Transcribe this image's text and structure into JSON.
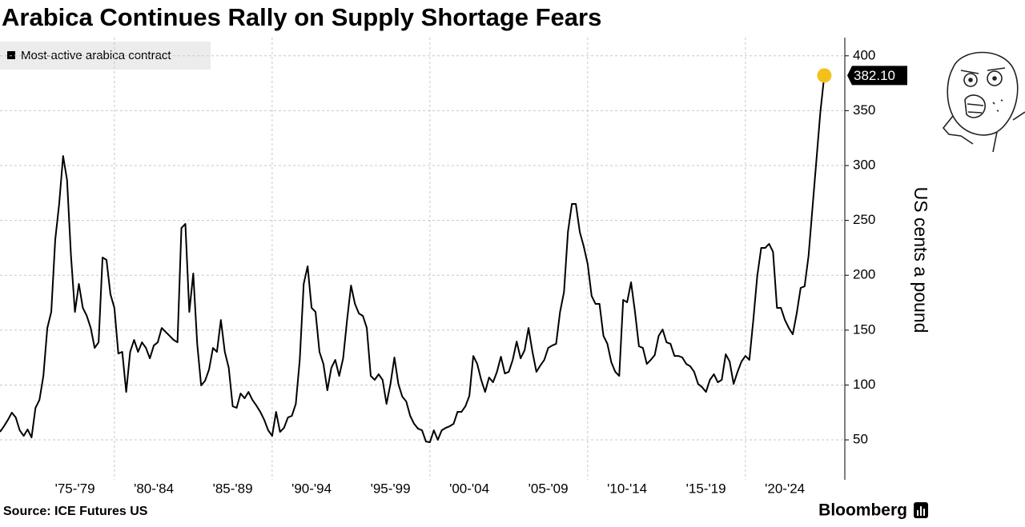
{
  "chart_data": {
    "type": "line",
    "title": "Arabica Continues Rally on Supply Shortage Fears",
    "source": "Source: ICE Futures US",
    "brand": "Bloomberg",
    "y_label": "US cents a pound",
    "end_label": "382.10",
    "highlight_color": "#f2c21b",
    "x": [
      1972.75,
      1973,
      1973.25,
      1973.5,
      1973.75,
      1974,
      1974.25,
      1974.5,
      1974.75,
      1975,
      1975.25,
      1975.5,
      1975.75,
      1976,
      1976.25,
      1976.5,
      1976.75,
      1977,
      1977.25,
      1977.5,
      1977.75,
      1978,
      1978.25,
      1978.5,
      1978.75,
      1979,
      1979.25,
      1979.5,
      1979.75,
      1980,
      1980.25,
      1980.5,
      1980.75,
      1981,
      1981.25,
      1981.5,
      1981.75,
      1982,
      1982.25,
      1982.5,
      1982.75,
      1983,
      1983.25,
      1983.5,
      1983.75,
      1984,
      1984.25,
      1984.5,
      1984.75,
      1985,
      1985.25,
      1985.5,
      1985.75,
      1986,
      1986.25,
      1986.5,
      1986.75,
      1987,
      1987.25,
      1987.5,
      1987.75,
      1988,
      1988.25,
      1988.5,
      1988.75,
      1989,
      1989.25,
      1989.5,
      1989.75,
      1990,
      1990.25,
      1990.5,
      1990.75,
      1991,
      1991.25,
      1991.5,
      1991.75,
      1992,
      1992.25,
      1992.5,
      1992.75,
      1993,
      1993.25,
      1993.5,
      1993.75,
      1994,
      1994.25,
      1994.5,
      1994.75,
      1995,
      1995.25,
      1995.5,
      1995.75,
      1996,
      1996.25,
      1996.5,
      1996.75,
      1997,
      1997.25,
      1997.5,
      1997.75,
      1998,
      1998.25,
      1998.5,
      1998.75,
      1999,
      1999.25,
      1999.5,
      1999.75,
      2000,
      2000.25,
      2000.5,
      2000.75,
      2001,
      2001.25,
      2001.5,
      2001.75,
      2002,
      2002.25,
      2002.5,
      2002.75,
      2003,
      2003.25,
      2003.5,
      2003.75,
      2004,
      2004.25,
      2004.5,
      2004.75,
      2005,
      2005.25,
      2005.5,
      2005.75,
      2006,
      2006.25,
      2006.5,
      2006.75,
      2007,
      2007.25,
      2007.5,
      2007.75,
      2008,
      2008.25,
      2008.5,
      2008.75,
      2009,
      2009.25,
      2009.5,
      2009.75,
      2010,
      2010.25,
      2010.5,
      2010.75,
      2011,
      2011.25,
      2011.5,
      2011.75,
      2012,
      2012.25,
      2012.5,
      2012.75,
      2013,
      2013.25,
      2013.5,
      2013.75,
      2014,
      2014.25,
      2014.5,
      2014.75,
      2015,
      2015.25,
      2015.5,
      2015.75,
      2016,
      2016.25,
      2016.5,
      2016.75,
      2017,
      2017.25,
      2017.5,
      2017.75,
      2018,
      2018.25,
      2018.5,
      2018.75,
      2019,
      2019.25,
      2019.5,
      2019.75,
      2020,
      2020.25,
      2020.5,
      2020.75,
      2021,
      2021.25,
      2021.5,
      2021.75,
      2022,
      2022.25,
      2022.5,
      2022.75,
      2023,
      2023.25,
      2023.5,
      2023.75,
      2024,
      2024.25,
      2024.5,
      2024.75,
      2025
    ],
    "series": [
      {
        "name": "Most-active arabica contract",
        "color": "#000000",
        "values": [
          57.3,
          62.4,
          68.2,
          74.8,
          70.4,
          58.7,
          53.6,
          59.5,
          52.2,
          79.2,
          86.4,
          108.3,
          152,
          166.6,
          232.2,
          265,
          308.7,
          286.9,
          217.6,
          166.6,
          192.1,
          170.3,
          163,
          152,
          133.8,
          138.9,
          216.2,
          214,
          182.7,
          170.3,
          128.7,
          130.2,
          93.7,
          130.2,
          141.1,
          130.2,
          138.9,
          133.8,
          124.3,
          136,
          138.9,
          152,
          148.4,
          144.8,
          141.1,
          138.9,
          243.1,
          246.8,
          166.6,
          201.6,
          137.5,
          99.6,
          103.9,
          114.1,
          133.8,
          130.2,
          159.3,
          130.2,
          115.6,
          80.6,
          79.2,
          92.3,
          87.9,
          93.7,
          86.4,
          81.3,
          75.5,
          68.2,
          58.7,
          53.6,
          75.5,
          57.3,
          60.9,
          70.4,
          71.9,
          82.8,
          122.9,
          192.1,
          208.2,
          170.3,
          166.6,
          130.2,
          119.2,
          95.2,
          115.6,
          122.9,
          108.3,
          124.3,
          159.3,
          190.7,
          173.9,
          165.2,
          163,
          152,
          108.3,
          104.7,
          109.8,
          104.7,
          82.8,
          101,
          125.1,
          101,
          89.4,
          85,
          71.9,
          64.6,
          60.2,
          58.7,
          48.5,
          47.8,
          58.7,
          50,
          58.7,
          60.9,
          62.4,
          64.6,
          75.5,
          75.5,
          80.6,
          90.1,
          126.5,
          119.2,
          104.7,
          93.7,
          106.9,
          102.5,
          112,
          125.8,
          110.5,
          112,
          122.9,
          139.6,
          124.3,
          131.6,
          152,
          130.2,
          112,
          117.8,
          122.9,
          133.8,
          136,
          137.5,
          166.6,
          184.8,
          239.5,
          265,
          265,
          239.5,
          226.4,
          210.3,
          181.2,
          173.9,
          173.9,
          144.8,
          137.5,
          120.7,
          112,
          108.3,
          177.6,
          175.4,
          193.6,
          166.6,
          135.3,
          133.8,
          119.2,
          122.9,
          127.3,
          144.8,
          150.6,
          138.9,
          137.5,
          126.5,
          126.5,
          125.1,
          119.2,
          117.1,
          112,
          101,
          98.1,
          93.7,
          104.7,
          109.8,
          102.5,
          104.7,
          128,
          121.4,
          101,
          112,
          121.4,
          126.5,
          122.9,
          159.3,
          199.4,
          224.9,
          224.9,
          228.6,
          221.3,
          170.3,
          170.3,
          159.3,
          152,
          146.2,
          165.2,
          188.5,
          189.9,
          217.6,
          261.4,
          305.1,
          348.8,
          382.1
        ]
      }
    ],
    "xlim": [
      1972.75,
      2026.3
    ],
    "xticks": [
      {
        "value": 1977.5,
        "label": "'75-'79"
      },
      {
        "value": 1982.5,
        "label": "'80-'84"
      },
      {
        "value": 1987.5,
        "label": "'85-'89"
      },
      {
        "value": 1992.5,
        "label": "'90-'94"
      },
      {
        "value": 1997.5,
        "label": "'95-'99"
      },
      {
        "value": 2002.5,
        "label": "'00-'04"
      },
      {
        "value": 2007.5,
        "label": "'05-'09"
      },
      {
        "value": 2012.5,
        "label": "'10-'14"
      },
      {
        "value": 2017.5,
        "label": "'15-'19"
      },
      {
        "value": 2022.5,
        "label": "'20-'24"
      }
    ],
    "xgrid": [
      1980,
      1990,
      2000,
      2010,
      2020
    ],
    "ylim": [
      13.6,
      416.6
    ],
    "yticks": [
      50,
      100,
      150,
      200,
      250,
      300,
      350,
      400
    ],
    "grid": true
  }
}
